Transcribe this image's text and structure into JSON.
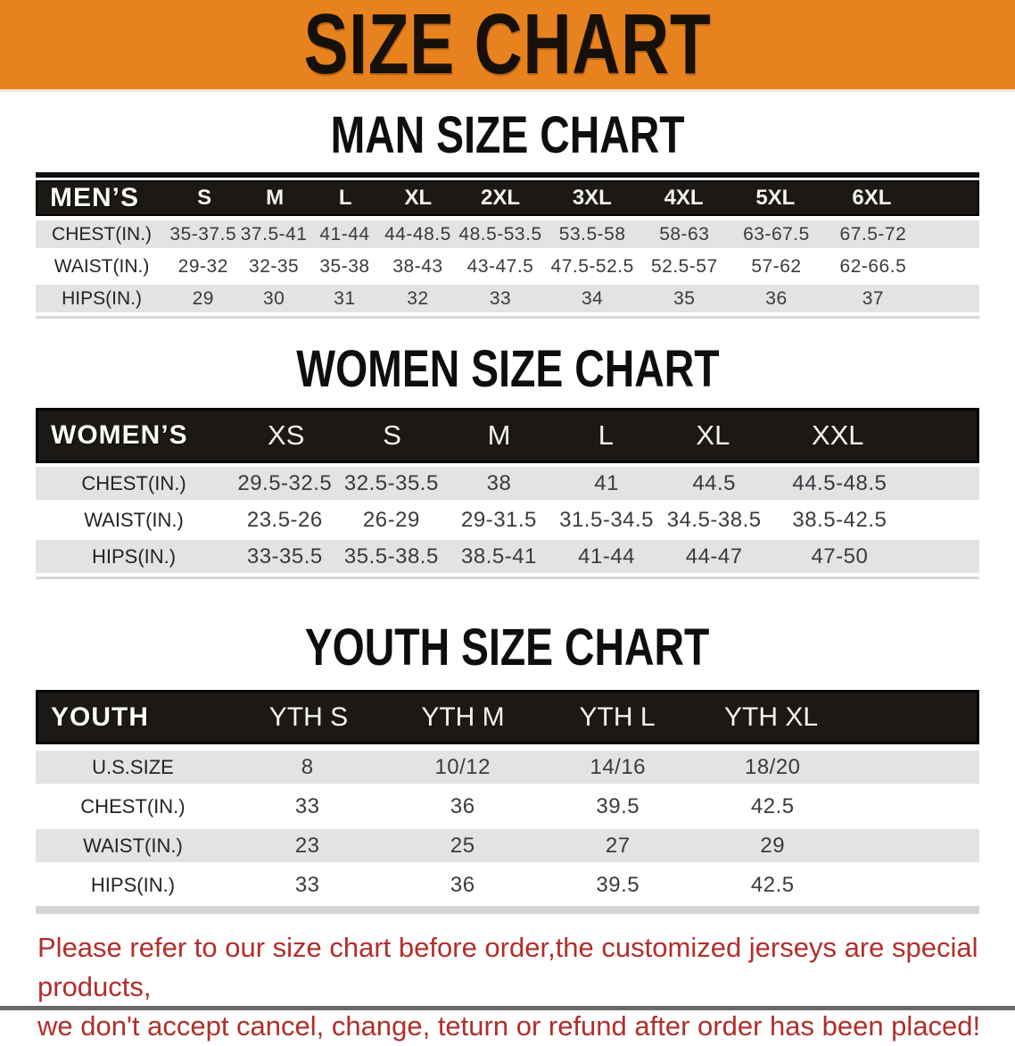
{
  "banner": {
    "title": "SIZE CHART"
  },
  "colors": {
    "banner_bg": "#E8821E",
    "header_bar_bg": "#1B1815",
    "row_stripe": "#E3E3E4",
    "footer_text": "#B22E2A"
  },
  "man_section": {
    "heading": "MAN SIZE CHART",
    "table": {
      "label": "MEN’S",
      "sizes": [
        "S",
        "M",
        "L",
        "XL",
        "2XL",
        "3XL",
        "4XL",
        "5XL",
        "6XL"
      ],
      "rows": [
        {
          "label": "CHEST(IN.)",
          "values": [
            "35-37.5",
            "37.5-41",
            "41-44",
            "44-48.5",
            "48.5-53.5",
            "53.5-58",
            "58-63",
            "63-67.5",
            "67.5-72"
          ]
        },
        {
          "label": "WAIST(IN.)",
          "values": [
            "29-32",
            "32-35",
            "35-38",
            "38-43",
            "43-47.5",
            "47.5-52.5",
            "52.5-57",
            "57-62",
            "62-66.5"
          ]
        },
        {
          "label": "HIPS(IN.)",
          "values": [
            "29",
            "30",
            "31",
            "32",
            "33",
            "34",
            "35",
            "36",
            "37"
          ]
        }
      ]
    }
  },
  "women_section": {
    "heading": "WOMEN SIZE CHART",
    "table": {
      "label": "WOMEN’S",
      "sizes": [
        "XS",
        "S",
        "M",
        "L",
        "XL",
        "XXL"
      ],
      "rows": [
        {
          "label": "CHEST(IN.)",
          "values": [
            "29.5-32.5",
            "32.5-35.5",
            "38",
            "41",
            "44.5",
            "44.5-48.5"
          ]
        },
        {
          "label": "WAIST(IN.)",
          "values": [
            "23.5-26",
            "26-29",
            "29-31.5",
            "31.5-34.5",
            "34.5-38.5",
            "38.5-42.5"
          ]
        },
        {
          "label": "HIPS(IN.)",
          "values": [
            "33-35.5",
            "35.5-38.5",
            "38.5-41",
            "41-44",
            "44-47",
            "47-50"
          ]
        }
      ]
    }
  },
  "youth_section": {
    "heading": "YOUTH SIZE CHART",
    "table": {
      "label": "YOUTH",
      "sizes": [
        "YTH S",
        "YTH M",
        "YTH L",
        "YTH XL"
      ],
      "rows": [
        {
          "label": "U.S.SIZE",
          "values": [
            "8",
            "10/12",
            "14/16",
            "18/20"
          ]
        },
        {
          "label": "CHEST(IN.)",
          "values": [
            "33",
            "36",
            "39.5",
            "42.5"
          ]
        },
        {
          "label": "WAIST(IN.)",
          "values": [
            "23",
            "25",
            "27",
            "29"
          ]
        },
        {
          "label": "HIPS(IN.)",
          "values": [
            "33",
            "36",
            "39.5",
            "42.5"
          ]
        }
      ]
    }
  },
  "footer": {
    "line1": "Please refer to our size chart before order,the customized jerseys are special products,",
    "line2": "we don't accept cancel, change, teturn or refund after order has been placed!"
  }
}
